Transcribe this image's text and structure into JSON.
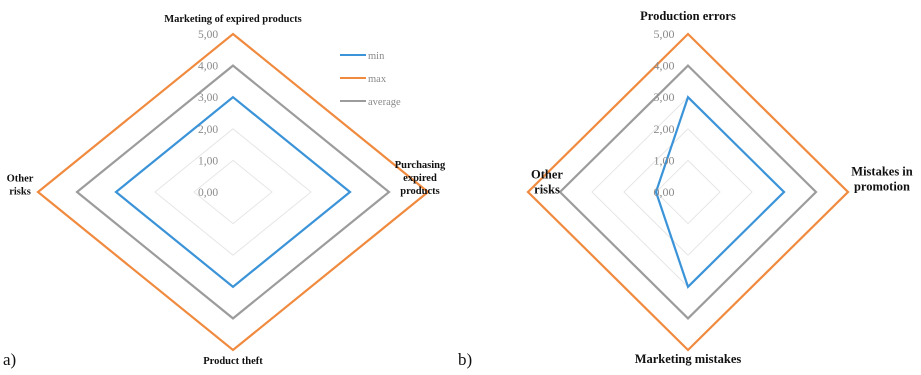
{
  "chart_data": [
    {
      "type": "radar",
      "panel_label": "a)",
      "axes": [
        "Marketing of expired products",
        "Purchasing expired products",
        "Product theft",
        "Other risks"
      ],
      "axis_label_lines": [
        [
          "Marketing of expired products"
        ],
        [
          "Purchasing",
          "expired",
          "products"
        ],
        [
          "Product theft"
        ],
        [
          "Other",
          "risks"
        ]
      ],
      "rlim": [
        0,
        5
      ],
      "ticks": [
        "0,00",
        "1,00",
        "2,00",
        "3,00",
        "4,00",
        "5,00"
      ],
      "grid": true,
      "legend_position": "top-right",
      "series": [
        {
          "name": "min",
          "color": "#3b93d8",
          "values": [
            3,
            3,
            3,
            3
          ]
        },
        {
          "name": "max",
          "color": "#f08a3e",
          "values": [
            5,
            5,
            5,
            5
          ]
        },
        {
          "name": "average",
          "color": "#9c9c9c",
          "values": [
            4,
            4,
            4,
            4
          ]
        }
      ]
    },
    {
      "type": "radar",
      "panel_label": "b)",
      "axes": [
        "Production errors",
        "Mistakes in promotion",
        "Marketing mistakes",
        "Other risks"
      ],
      "axis_label_lines": [
        [
          "Production errors"
        ],
        [
          "Mistakes in",
          "promotion"
        ],
        [
          "Marketing mistakes"
        ],
        [
          "Other",
          "risks"
        ]
      ],
      "rlim": [
        0,
        5
      ],
      "ticks": [
        "0,00",
        "1,00",
        "2,00",
        "3,00",
        "4,00",
        "5,00"
      ],
      "grid": true,
      "legend_position": "none",
      "series": [
        {
          "name": "min",
          "color": "#3b93d8",
          "values": [
            3,
            3,
            3,
            1
          ]
        },
        {
          "name": "max",
          "color": "#f08a3e",
          "values": [
            5,
            5,
            5,
            5
          ]
        },
        {
          "name": "average",
          "color": "#9c9c9c",
          "values": [
            4,
            4,
            4,
            4
          ]
        }
      ]
    }
  ]
}
